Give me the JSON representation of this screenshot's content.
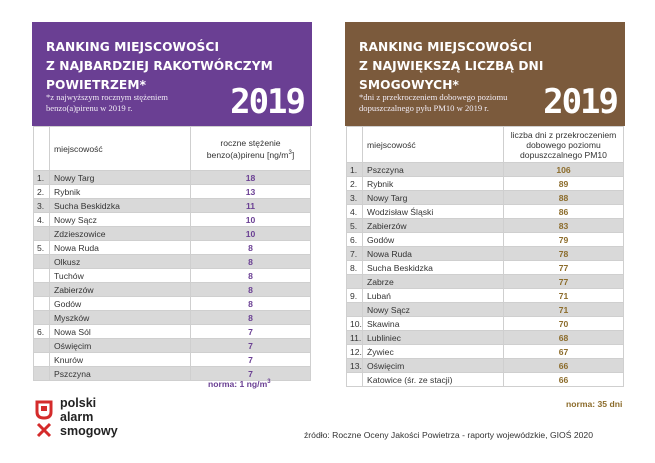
{
  "left": {
    "title_line1": "RANKING MIEJSCOWOŚCI",
    "title_line2": "Z NAJBARDZIEJ RAKOTWÓRCZYM POWIETRZEM*",
    "note": "*z najwyższym rocznym stężeniem benzo(a)pirenu w 2019 r.",
    "year": "2019",
    "col_city": "miejscowość",
    "col_value_line1": "roczne stężenie",
    "col_value_line2": "benzo(a)pirenu [ng/m",
    "col_value_sup": "3",
    "col_value_end": "]",
    "rows": [
      {
        "rank": "1.",
        "city": "Nowy Targ",
        "value": "18"
      },
      {
        "rank": "2.",
        "city": "Rybnik",
        "value": "13"
      },
      {
        "rank": "3.",
        "city": "Sucha Beskidzka",
        "value": "11"
      },
      {
        "rank": "4.",
        "city": "Nowy Sącz",
        "value": "10"
      },
      {
        "rank": "",
        "city": "Zdzieszowice",
        "value": "10"
      },
      {
        "rank": "5.",
        "city": "Nowa Ruda",
        "value": "8"
      },
      {
        "rank": "",
        "city": "Olkusz",
        "value": "8"
      },
      {
        "rank": "",
        "city": "Tuchów",
        "value": "8"
      },
      {
        "rank": "",
        "city": "Zabierzów",
        "value": "8"
      },
      {
        "rank": "",
        "city": "Godów",
        "value": "8"
      },
      {
        "rank": "",
        "city": "Myszków",
        "value": "8"
      },
      {
        "rank": "6.",
        "city": "Nowa Sól",
        "value": "7"
      },
      {
        "rank": "",
        "city": "Oświęcim",
        "value": "7"
      },
      {
        "rank": "",
        "city": "Knurów",
        "value": "7"
      },
      {
        "rank": "",
        "city": "Pszczyna",
        "value": "7"
      }
    ],
    "norm": "norma: 1 ng/m",
    "norm_sup": "3"
  },
  "right": {
    "title_line1": "RANKING MIEJSCOWOŚCI",
    "title_line2": "Z NAJWIĘKSZĄ LICZBĄ DNI SMOGOWYCH*",
    "note": "*dni z przekroczeniem dobowego poziomu dopuszczalnego pyłu PM10 w 2019 r.",
    "year": "2019",
    "col_city": "miejscowość",
    "col_value_line1": "liczba dni z przekroczeniem",
    "col_value_line2": "dobowego poziomu",
    "col_value_line3": "dopuszczalnego PM10",
    "rows": [
      {
        "rank": "1.",
        "city": "Pszczyna",
        "value": "106"
      },
      {
        "rank": "2.",
        "city": "Rybnik",
        "value": "89"
      },
      {
        "rank": "3.",
        "city": "Nowy Targ",
        "value": "88"
      },
      {
        "rank": "4.",
        "city": "Wodzisław Śląski",
        "value": "86"
      },
      {
        "rank": "5.",
        "city": "Zabierzów",
        "value": "83"
      },
      {
        "rank": "6.",
        "city": "Godów",
        "value": "79"
      },
      {
        "rank": "7.",
        "city": "Nowa Ruda",
        "value": "78"
      },
      {
        "rank": "8.",
        "city": "Sucha Beskidzka",
        "value": "77"
      },
      {
        "rank": "",
        "city": "Zabrze",
        "value": "77"
      },
      {
        "rank": "9.",
        "city": "Lubań",
        "value": "71"
      },
      {
        "rank": "",
        "city": "Nowy Sącz",
        "value": "71"
      },
      {
        "rank": "10.",
        "city": "Skawina",
        "value": "70"
      },
      {
        "rank": "11.",
        "city": "Lubliniec",
        "value": "68"
      },
      {
        "rank": "12.",
        "city": "Żywiec",
        "value": "67"
      },
      {
        "rank": "13.",
        "city": "Oświęcim",
        "value": "66"
      },
      {
        "rank": "",
        "city": "Katowice (śr. ze stacji)",
        "value": "66"
      }
    ],
    "norm": "norma: 35 dni"
  },
  "logo": {
    "line1": "polski",
    "line2": "alarm",
    "line3": "smogowy"
  },
  "source": "źródło: Roczne Oceny Jakości Powietrza -  raporty wojewódzkie, GIOŚ 2020",
  "colors": {
    "left_accent": "#6a3f93",
    "right_accent": "#7b5a3c",
    "right_values": "#8c6c2b",
    "logo_red": "#d42b2b"
  }
}
